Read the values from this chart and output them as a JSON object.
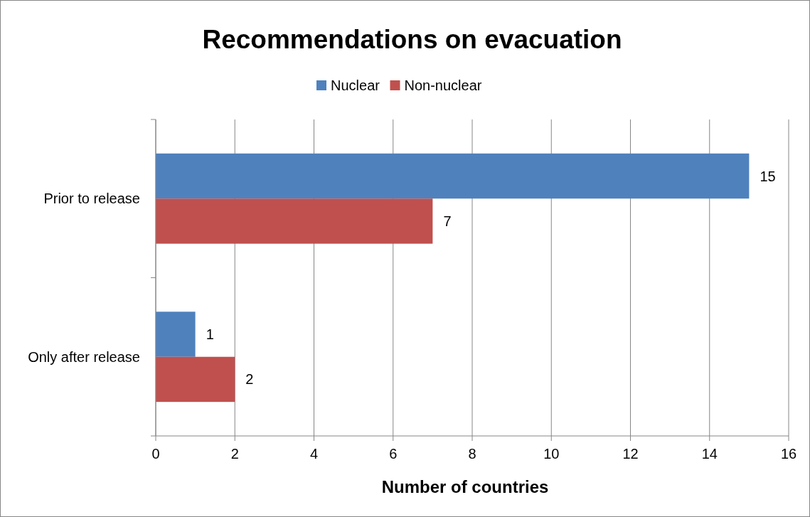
{
  "chart_data": {
    "type": "bar",
    "orientation": "horizontal",
    "title": "Recommendations on evacuation",
    "xlabel": "Number of countries",
    "categories": [
      "Prior to release",
      "Only after release"
    ],
    "series": [
      {
        "name": "Nuclear",
        "color": "#4f81bd",
        "values": [
          15,
          1
        ]
      },
      {
        "name": "Non-nuclear",
        "color": "#c0504d",
        "values": [
          7,
          2
        ]
      }
    ],
    "xlim": [
      0,
      16
    ],
    "xticks": [
      0,
      2,
      4,
      6,
      8,
      10,
      12,
      14,
      16
    ],
    "grid": "x",
    "legend": "top",
    "data_labels": true
  }
}
